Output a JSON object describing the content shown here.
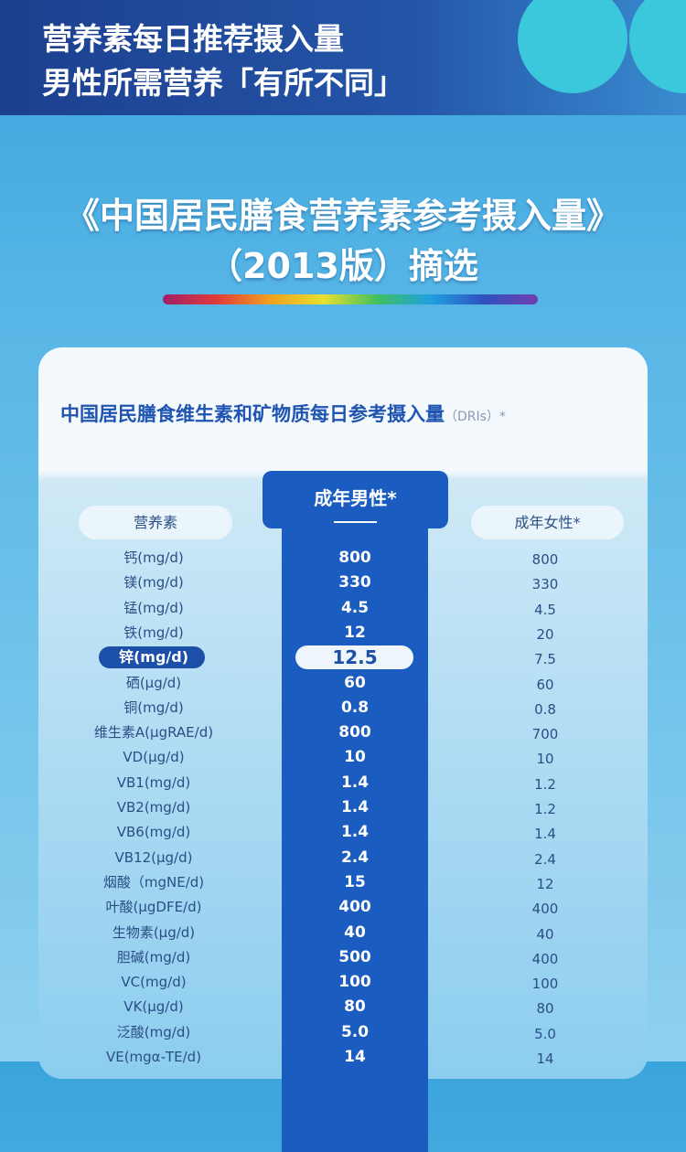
{
  "header": {
    "lines": [
      "营养素每日推荐摄入量",
      "男性所需营养「有所不同」"
    ]
  },
  "source": {
    "title": "《中国居民膳食营养素参考摄入量》",
    "subtitle": "（2013版）摘选"
  },
  "table": {
    "title": "中国居民膳食维生素和矿物质每日参考摄入量",
    "title_note": "（DRIs）*",
    "columns": [
      "营养素",
      "成年男性*",
      "成年女性*"
    ],
    "highlighted_row": 4,
    "rows": [
      [
        "钙(mg/d)",
        "800",
        "800"
      ],
      [
        "镁(mg/d)",
        "330",
        "330"
      ],
      [
        "锰(mg/d)",
        "4.5",
        "4.5"
      ],
      [
        "铁(mg/d)",
        "12",
        "20"
      ],
      [
        "锌(mg/d)",
        "12.5",
        "7.5"
      ],
      [
        "硒(μg/d)",
        "60",
        "60"
      ],
      [
        "铜(mg/d)",
        "0.8",
        "0.8"
      ],
      [
        "维生素A(μgRAE/d)",
        "800",
        "700"
      ],
      [
        "VD(μg/d)",
        "10",
        "10"
      ],
      [
        "VB1(mg/d)",
        "1.4",
        "1.2"
      ],
      [
        "VB2(mg/d)",
        "1.4",
        "1.2"
      ],
      [
        "VB6(mg/d)",
        "1.4",
        "1.4"
      ],
      [
        "VB12(μg/d)",
        "2.4",
        "2.4"
      ],
      [
        "烟酸（mgNE/d)",
        "15",
        "12"
      ],
      [
        "叶酸(μgDFE/d)",
        "400",
        "400"
      ],
      [
        "生物素(μg/d)",
        "40",
        "40"
      ],
      [
        "胆碱(mg/d)",
        "500",
        "400"
      ],
      [
        "VC(mg/d)",
        "100",
        "100"
      ],
      [
        "VK(μg/d)",
        "80",
        "80"
      ],
      [
        "泛酸(mg/d)",
        "5.0",
        "5.0"
      ],
      [
        "VE(mgα-TE/d)",
        "14",
        "14"
      ]
    ]
  }
}
